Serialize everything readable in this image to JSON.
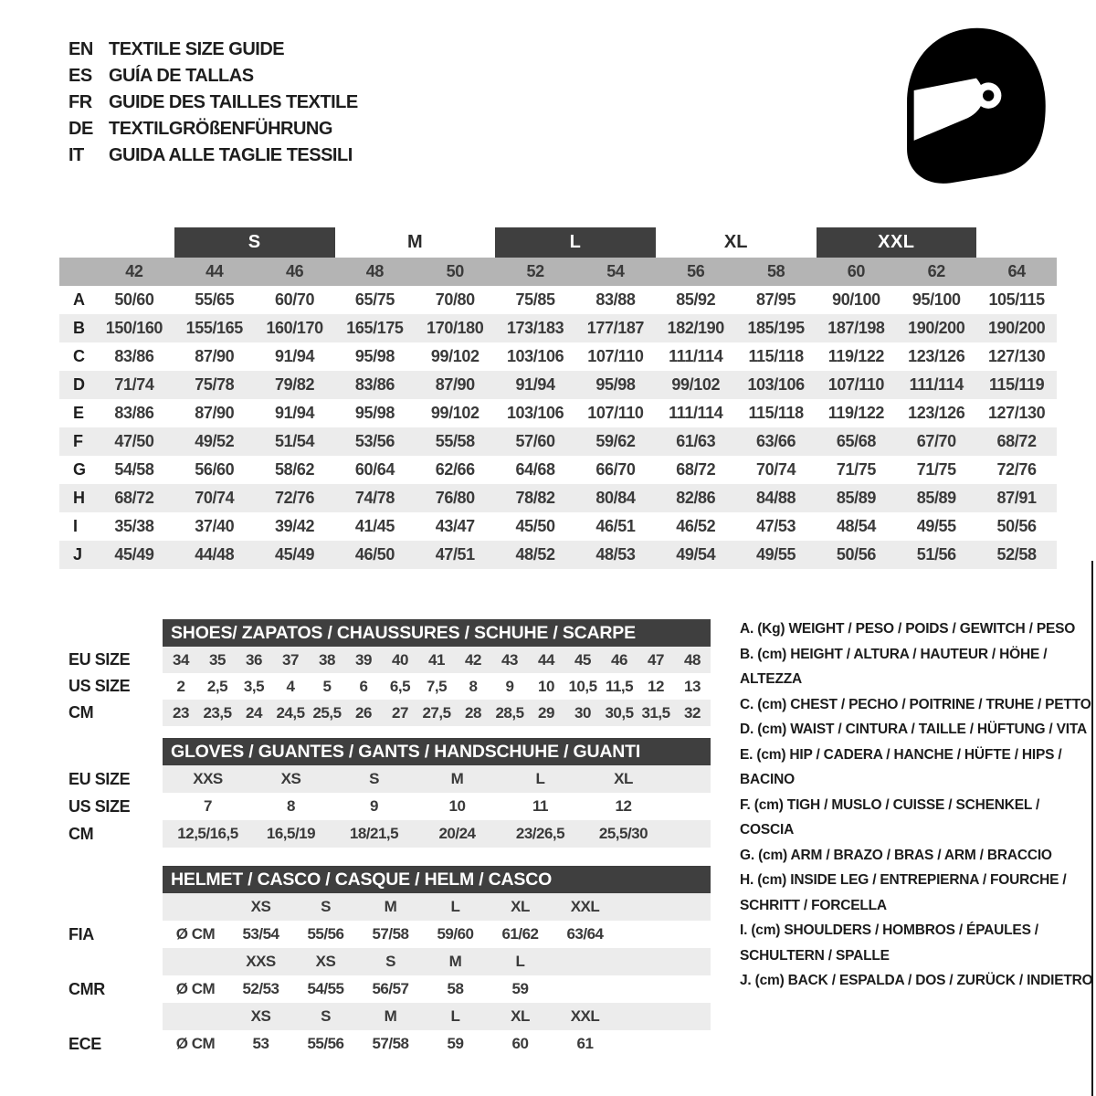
{
  "header": {
    "languages": [
      {
        "code": "EN",
        "label": "TEXTILE SIZE GUIDE"
      },
      {
        "code": "ES",
        "label": "GUÍA DE TALLAS"
      },
      {
        "code": "FR",
        "label": "GUIDE DES TAILLES TEXTILE"
      },
      {
        "code": "DE",
        "label": "TEXTILGRÖßENFÜHRUNG"
      },
      {
        "code": "IT",
        "label": "GUIDA ALLE TAGLIE TESSILI"
      }
    ],
    "icon": "racing-helmet-icon"
  },
  "colors": {
    "dark_box": "#3f3f3f",
    "number_band": "#b4b4b4",
    "stripe": "#ececec",
    "text": "#3a3a3a"
  },
  "main_table": {
    "size_bands": [
      {
        "label": "S",
        "boxed": true
      },
      {
        "label": "M",
        "boxed": false
      },
      {
        "label": "L",
        "boxed": true
      },
      {
        "label": "XL",
        "boxed": false
      },
      {
        "label": "XXL",
        "boxed": true
      }
    ],
    "columns": [
      "42",
      "44",
      "46",
      "48",
      "50",
      "52",
      "54",
      "56",
      "58",
      "60",
      "62",
      "64"
    ],
    "rows": [
      {
        "label": "A",
        "values": [
          "50/60",
          "55/65",
          "60/70",
          "65/75",
          "70/80",
          "75/85",
          "83/88",
          "85/92",
          "87/95",
          "90/100",
          "95/100",
          "105/115"
        ]
      },
      {
        "label": "B",
        "values": [
          "150/160",
          "155/165",
          "160/170",
          "165/175",
          "170/180",
          "173/183",
          "177/187",
          "182/190",
          "185/195",
          "187/198",
          "190/200",
          "190/200"
        ]
      },
      {
        "label": "C",
        "values": [
          "83/86",
          "87/90",
          "91/94",
          "95/98",
          "99/102",
          "103/106",
          "107/110",
          "111/114",
          "115/118",
          "119/122",
          "123/126",
          "127/130"
        ]
      },
      {
        "label": "D",
        "values": [
          "71/74",
          "75/78",
          "79/82",
          "83/86",
          "87/90",
          "91/94",
          "95/98",
          "99/102",
          "103/106",
          "107/110",
          "111/114",
          "115/119"
        ]
      },
      {
        "label": "E",
        "values": [
          "83/86",
          "87/90",
          "91/94",
          "95/98",
          "99/102",
          "103/106",
          "107/110",
          "111/114",
          "115/118",
          "119/122",
          "123/126",
          "127/130"
        ]
      },
      {
        "label": "F",
        "values": [
          "47/50",
          "49/52",
          "51/54",
          "53/56",
          "55/58",
          "57/60",
          "59/62",
          "61/63",
          "63/66",
          "65/68",
          "67/70",
          "68/72"
        ]
      },
      {
        "label": "G",
        "values": [
          "54/58",
          "56/60",
          "58/62",
          "60/64",
          "62/66",
          "64/68",
          "66/70",
          "68/72",
          "70/74",
          "71/75",
          "71/75",
          "72/76"
        ]
      },
      {
        "label": "H",
        "values": [
          "68/72",
          "70/74",
          "72/76",
          "74/78",
          "76/80",
          "78/82",
          "80/84",
          "82/86",
          "84/88",
          "85/89",
          "85/89",
          "87/91"
        ]
      },
      {
        "label": "I",
        "values": [
          "35/38",
          "37/40",
          "39/42",
          "41/45",
          "43/47",
          "45/50",
          "46/51",
          "46/52",
          "47/53",
          "48/54",
          "49/55",
          "50/56"
        ]
      },
      {
        "label": "J",
        "values": [
          "45/49",
          "44/48",
          "45/49",
          "46/50",
          "47/51",
          "48/52",
          "48/53",
          "49/54",
          "49/55",
          "50/56",
          "51/56",
          "52/58"
        ]
      }
    ]
  },
  "shoes_table": {
    "title": "SHOES/ ZAPATOS / CHAUSSURES / SCHUHE / SCARPE",
    "rows": [
      {
        "label": "EU SIZE",
        "shaded": true,
        "values": [
          "34",
          "35",
          "36",
          "37",
          "38",
          "39",
          "40",
          "41",
          "42",
          "43",
          "44",
          "45",
          "46",
          "47",
          "48"
        ]
      },
      {
        "label": "US SIZE",
        "shaded": false,
        "values": [
          "2",
          "2,5",
          "3,5",
          "4",
          "5",
          "6",
          "6,5",
          "7,5",
          "8",
          "9",
          "10",
          "10,5",
          "11,5",
          "12",
          "13"
        ]
      },
      {
        "label": "CM",
        "shaded": true,
        "values": [
          "23",
          "23,5",
          "24",
          "24,5",
          "25,5",
          "26",
          "27",
          "27,5",
          "28",
          "28,5",
          "29",
          "30",
          "30,5",
          "31,5",
          "32"
        ]
      }
    ]
  },
  "gloves_table": {
    "title": "GLOVES / GUANTES / GANTS / HANDSCHUHE / GUANTI",
    "rows": [
      {
        "label": "EU SIZE",
        "shaded": true,
        "values": [
          "XXS",
          "XS",
          "S",
          "M",
          "L",
          "XL"
        ]
      },
      {
        "label": "US SIZE",
        "shaded": false,
        "values": [
          "7",
          "8",
          "9",
          "10",
          "11",
          "12"
        ]
      },
      {
        "label": "CM",
        "shaded": true,
        "values": [
          "12,5/16,5",
          "16,5/19",
          "18/21,5",
          "20/24",
          "23/26,5",
          "25,5/30"
        ]
      }
    ]
  },
  "helmet_table": {
    "title": "HELMET / CASCO / CASQUE / HELM / CASCO",
    "sections": [
      {
        "label": "FIA",
        "unit": "Ø CM",
        "sizes": [
          "XS",
          "S",
          "M",
          "L",
          "XL",
          "XXL"
        ],
        "values": [
          "53/54",
          "55/56",
          "57/58",
          "59/60",
          "61/62",
          "63/64"
        ]
      },
      {
        "label": "CMR",
        "unit": "Ø CM",
        "sizes": [
          "XXS",
          "XS",
          "S",
          "M",
          "L",
          ""
        ],
        "values": [
          "52/53",
          "54/55",
          "56/57",
          "58",
          "59",
          ""
        ]
      },
      {
        "label": "ECE",
        "unit": "Ø CM",
        "sizes": [
          "XS",
          "S",
          "M",
          "L",
          "XL",
          "XXL"
        ],
        "values": [
          "53",
          "55/56",
          "57/58",
          "59",
          "60",
          "61"
        ]
      }
    ]
  },
  "legend": {
    "items": [
      "A. (Kg) WEIGHT / PESO / POIDS / GEWITCH / PESO",
      "B. (cm) HEIGHT / ALTURA / HAUTEUR / HÖHE / ALTEZZA",
      "C. (cm) CHEST / PECHO / POITRINE / TRUHE / PETTO",
      "D. (cm) WAIST / CINTURA / TAILLE / HÜFTUNG / VITA",
      "E. (cm) HIP / CADERA / HANCHE / HÜFTE / HIPS / BACINO",
      "F. (cm) TIGH / MUSLO / CUISSE / SCHENKEL / COSCIA",
      "G. (cm) ARM / BRAZO / BRAS / ARM / BRACCIO",
      "H. (cm) INSIDE LEG / ENTREPIERNA / FOURCHE / SCHRITT / FORCELLA",
      "I. (cm) SHOULDERS / HOMBROS / ÉPAULES / SCHULTERN / SPALLE",
      "J. (cm) BACK / ESPALDA / DOS / ZURÜCK / INDIETRO"
    ]
  }
}
